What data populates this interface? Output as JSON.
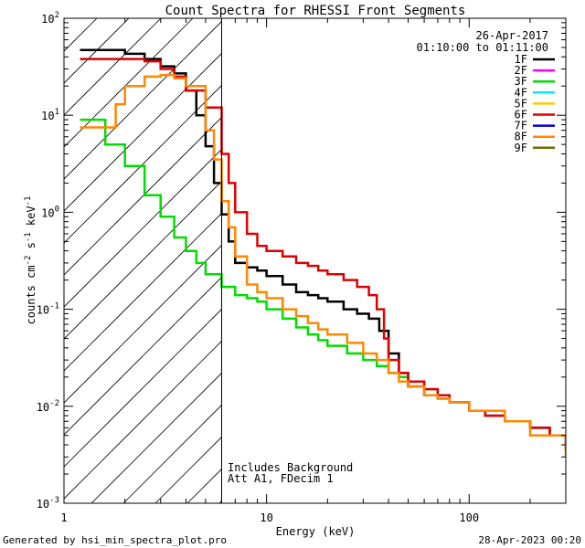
{
  "chart_data": {
    "type": "line",
    "title": "Count Spectra for RHESSI Front Segments",
    "xlabel": "Energy (keV)",
    "ylabel": {
      "base": "counts cm",
      "e1": "-2",
      "mid": " s",
      "e2": "-1",
      "tail": " keV",
      "e3": "-1"
    },
    "xscale": "log",
    "yscale": "log",
    "xlim": [
      1,
      300
    ],
    "ylim": [
      0.001,
      100
    ],
    "x_ticks": [
      "1",
      "10",
      "100"
    ],
    "y_ticks": [
      {
        "value": 100,
        "base": "10",
        "exp": "2"
      },
      {
        "value": 10,
        "base": "10",
        "exp": "1"
      },
      {
        "value": 1,
        "base": "10",
        "exp": "0"
      },
      {
        "value": 0.1,
        "base": "10",
        "exp": "-1"
      },
      {
        "value": 0.01,
        "base": "10",
        "exp": "-2"
      },
      {
        "value": 0.001,
        "base": "10",
        "exp": "-3"
      }
    ],
    "vertical_line_x": 6,
    "hatch_region": [
      1,
      6
    ],
    "legend": {
      "date": "26-Apr-2017",
      "time_range": "01:10:00 to 01:11:00",
      "entries": [
        {
          "label": "1F",
          "color": "#000000"
        },
        {
          "label": "2F",
          "color": "#ff00ff"
        },
        {
          "label": "3F",
          "color": "#00dd00"
        },
        {
          "label": "4F",
          "color": "#00eeee"
        },
        {
          "label": "5F",
          "color": "#ffcc00"
        },
        {
          "label": "6F",
          "color": "#dd0000"
        },
        {
          "label": "7F",
          "color": "#0000cc"
        },
        {
          "label": "8F",
          "color": "#ff8800"
        },
        {
          "label": "9F",
          "color": "#6b6b00"
        }
      ]
    },
    "annotation_lines": [
      "Includes Background",
      "Att A1, FDecim 1"
    ],
    "series": [
      {
        "name": "1F",
        "color": "#000000",
        "x": [
          1.2,
          1.5,
          2.0,
          2.5,
          3.0,
          3.5,
          4.0,
          4.5,
          5.0,
          5.5,
          6.0,
          6.5,
          7.0,
          8.0,
          9.0,
          10,
          12,
          14,
          16,
          18,
          20,
          24,
          28,
          32,
          36,
          40,
          45,
          50,
          60,
          70,
          80,
          100,
          120,
          150,
          200,
          250,
          300
        ],
        "y": [
          47,
          47,
          43,
          38,
          32,
          27,
          18,
          10,
          4.8,
          2.0,
          0.95,
          0.5,
          0.3,
          0.27,
          0.25,
          0.22,
          0.18,
          0.15,
          0.14,
          0.13,
          0.12,
          0.1,
          0.09,
          0.08,
          0.06,
          0.035,
          0.022,
          0.016,
          0.013,
          0.012,
          0.011,
          0.009,
          0.008,
          0.007,
          0.006,
          0.005,
          0.0035
        ]
      },
      {
        "name": "3F",
        "color": "#00dd00",
        "x": [
          1.2,
          1.4,
          1.6,
          2.0,
          2.5,
          3.0,
          3.5,
          4.0,
          4.5,
          5.0,
          6.0,
          7.0,
          8.0,
          9.0,
          10,
          12,
          14,
          16,
          18,
          20,
          25,
          30,
          35,
          40,
          45,
          50,
          60,
          70,
          80
        ],
        "y": [
          9,
          9,
          5,
          3,
          1.5,
          0.9,
          0.55,
          0.4,
          0.3,
          0.23,
          0.17,
          0.14,
          0.13,
          0.12,
          0.1,
          0.08,
          0.065,
          0.055,
          0.048,
          0.042,
          0.035,
          0.03,
          0.026,
          0.022,
          0.02,
          0.018,
          0.015,
          0.013,
          0.012
        ]
      },
      {
        "name": "6F",
        "color": "#dd0000",
        "x": [
          1.2,
          1.5,
          2.0,
          2.5,
          3.0,
          3.5,
          4.0,
          5.0,
          6.0,
          6.5,
          7.0,
          8.0,
          9.0,
          10,
          12,
          14,
          16,
          18,
          20,
          24,
          28,
          32,
          35,
          38,
          40,
          45,
          50,
          60,
          70,
          80,
          100,
          120,
          150,
          200,
          250,
          300
        ],
        "y": [
          38,
          38,
          38,
          36,
          30,
          25,
          18,
          12,
          4.0,
          2.0,
          1.0,
          0.6,
          0.45,
          0.4,
          0.35,
          0.3,
          0.28,
          0.25,
          0.23,
          0.2,
          0.17,
          0.14,
          0.1,
          0.05,
          0.03,
          0.022,
          0.018,
          0.015,
          0.013,
          0.011,
          0.009,
          0.008,
          0.007,
          0.006,
          0.005,
          0.004
        ]
      },
      {
        "name": "8F",
        "color": "#ff8800",
        "x": [
          1.2,
          1.4,
          1.6,
          1.8,
          2.0,
          2.5,
          3.0,
          3.5,
          4.0,
          5.0,
          5.5,
          6.0,
          6.5,
          7.0,
          8.0,
          9.0,
          10,
          12,
          14,
          16,
          18,
          20,
          25,
          30,
          35,
          40,
          45,
          50,
          60,
          70,
          80,
          100,
          150,
          200,
          300
        ],
        "y": [
          7.5,
          7.5,
          7.5,
          13,
          20,
          25,
          26,
          24,
          20,
          7,
          3.5,
          1.3,
          0.7,
          0.35,
          0.18,
          0.15,
          0.13,
          0.1,
          0.085,
          0.072,
          0.062,
          0.055,
          0.045,
          0.035,
          0.03,
          0.022,
          0.018,
          0.016,
          0.013,
          0.012,
          0.011,
          0.009,
          0.007,
          0.005,
          0.003
        ]
      }
    ]
  },
  "footer": {
    "left": "Generated by hsi_min_spectra_plot.pro",
    "right": "28-Apr-2023 00:20"
  }
}
